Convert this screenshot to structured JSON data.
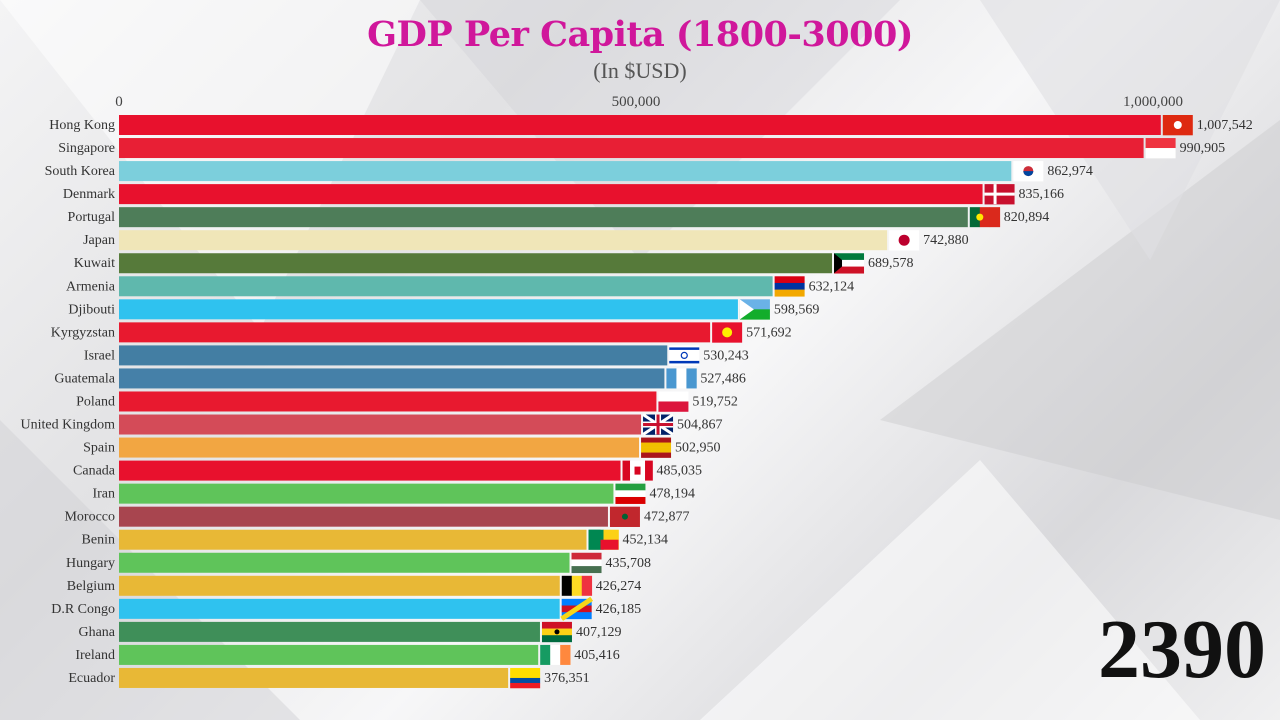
{
  "chart_data": {
    "type": "bar",
    "orientation": "horizontal",
    "title": "GDP Per Capita (1800-3000)",
    "subtitle": "(In $USD)",
    "xlim": [
      0,
      1000000
    ],
    "x_ticks": [
      0,
      500000,
      1000000
    ],
    "x_tick_labels": [
      "0",
      "500,000",
      "1,000,000"
    ],
    "grid": false,
    "year": "2390",
    "categories": [
      "Hong Kong",
      "Singapore",
      "South Korea",
      "Denmark",
      "Portugal",
      "Japan",
      "Kuwait",
      "Armenia",
      "Djibouti",
      "Kyrgyzstan",
      "Israel",
      "Guatemala",
      "Poland",
      "United Kingdom",
      "Spain",
      "Canada",
      "Iran",
      "Morocco",
      "Benin",
      "Hungary",
      "Belgium",
      "D.R Congo",
      "Ghana",
      "Ireland",
      "Ecuador"
    ],
    "values": [
      1007542,
      990905,
      862974,
      835166,
      820894,
      742880,
      689578,
      632124,
      598569,
      571692,
      530243,
      527486,
      519752,
      504867,
      502950,
      485035,
      478194,
      472877,
      452134,
      435708,
      426274,
      426185,
      407129,
      405416,
      376351
    ],
    "value_labels": [
      "1,007,542",
      "990,905",
      "862,974",
      "835,166",
      "820,894",
      "742,880",
      "689,578",
      "632,124",
      "598,569",
      "571,692",
      "530,243",
      "527,486",
      "519,752",
      "504,867",
      "502,950",
      "485,035",
      "478,194",
      "472,877",
      "452,134",
      "435,708",
      "426,274",
      "426,185",
      "407,129",
      "405,416",
      "376,351"
    ],
    "colors": [
      "#e8112d",
      "#e81f35",
      "#7ccfdc",
      "#e8112d",
      "#4e7d59",
      "#f0e6b8",
      "#567a3a",
      "#5fb8ad",
      "#2fc2ef",
      "#e8192f",
      "#437ea3",
      "#4580a8",
      "#e8192f",
      "#d44b58",
      "#f2a642",
      "#e8112d",
      "#5fc45a",
      "#a8454f",
      "#e8b836",
      "#5fc45a",
      "#e8b836",
      "#2fc2ef",
      "#3f8f59",
      "#5fc45a",
      "#e8b836"
    ],
    "flags": [
      {
        "dir": "h",
        "stripes": [
          "#de2910"
        ]
      },
      {
        "dir": "h",
        "stripes": [
          "#ef3340",
          "#ffffff"
        ]
      },
      {
        "dir": "h",
        "stripes": [
          "#ffffff"
        ]
      },
      {
        "dir": "h",
        "stripes": [
          "#c8102e"
        ]
      },
      {
        "dir": "v",
        "stripes": [
          "#046a38",
          "#da291c",
          "#da291c"
        ]
      },
      {
        "dir": "h",
        "stripes": [
          "#ffffff"
        ]
      },
      {
        "dir": "h",
        "stripes": [
          "#007a3d",
          "#ffffff",
          "#ce1126"
        ]
      },
      {
        "dir": "h",
        "stripes": [
          "#d90012",
          "#0033a0",
          "#f2a800"
        ]
      },
      {
        "dir": "h",
        "stripes": [
          "#6ab2e7",
          "#12ad2b"
        ]
      },
      {
        "dir": "h",
        "stripes": [
          "#e8112d"
        ]
      },
      {
        "dir": "h",
        "stripes": [
          "#ffffff",
          "#ffffff",
          "#ffffff"
        ]
      },
      {
        "dir": "v",
        "stripes": [
          "#4997d0",
          "#ffffff",
          "#4997d0"
        ]
      },
      {
        "dir": "h",
        "stripes": [
          "#ffffff",
          "#dc143c"
        ]
      },
      {
        "dir": "h",
        "stripes": [
          "#012169"
        ]
      },
      {
        "dir": "h",
        "stripes": [
          "#aa151b",
          "#f1bf00",
          "#f1bf00",
          "#aa151b"
        ]
      },
      {
        "dir": "v",
        "stripes": [
          "#d80621",
          "#ffffff",
          "#ffffff",
          "#d80621"
        ]
      },
      {
        "dir": "h",
        "stripes": [
          "#239f40",
          "#ffffff",
          "#da0000"
        ]
      },
      {
        "dir": "h",
        "stripes": [
          "#c1272d"
        ]
      },
      {
        "dir": "v",
        "stripes": [
          "#008751",
          "#fcd116"
        ]
      },
      {
        "dir": "h",
        "stripes": [
          "#ce2939",
          "#ffffff",
          "#477050"
        ]
      },
      {
        "dir": "v",
        "stripes": [
          "#000000",
          "#fdda24",
          "#ef3340"
        ]
      },
      {
        "dir": "h",
        "stripes": [
          "#007fff",
          "#ce1021",
          "#007fff"
        ]
      },
      {
        "dir": "h",
        "stripes": [
          "#ce1126",
          "#fcd116",
          "#006b3f"
        ]
      },
      {
        "dir": "v",
        "stripes": [
          "#169b62",
          "#ffffff",
          "#ff883e"
        ]
      },
      {
        "dir": "h",
        "stripes": [
          "#ffdd00",
          "#ffdd00",
          "#034ea2",
          "#ed1c24"
        ]
      }
    ]
  }
}
